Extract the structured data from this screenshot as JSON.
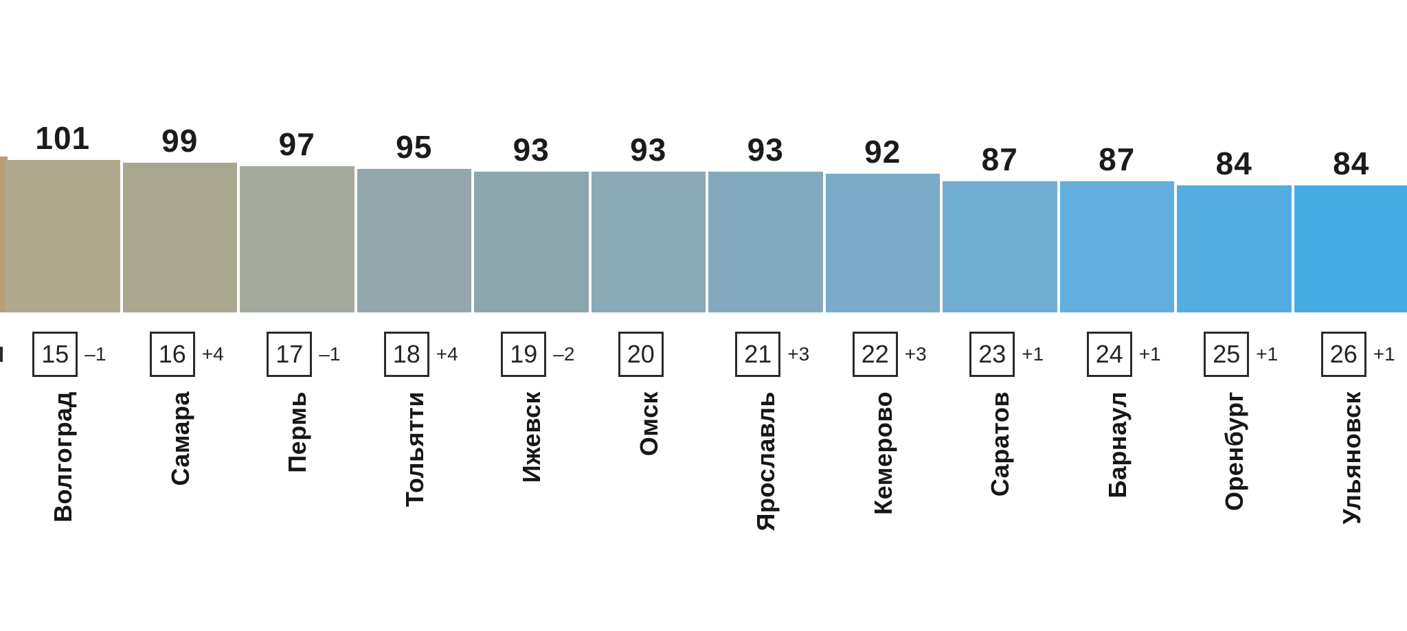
{
  "chart_data": {
    "type": "bar",
    "orientation": "vertical",
    "title": "",
    "categories": [
      "Волгоград",
      "Самара",
      "Пермь",
      "Тольятти",
      "Ижевск",
      "Омск",
      "Ярославль",
      "Кемерово",
      "Саратов",
      "Барнаул",
      "Оренбург",
      "Ульяновск"
    ],
    "values": [
      101,
      99,
      97,
      95,
      93,
      93,
      93,
      92,
      87,
      87,
      84,
      84
    ],
    "ranks": [
      15,
      16,
      17,
      18,
      19,
      20,
      21,
      22,
      23,
      24,
      25,
      26
    ],
    "rank_changes": [
      "–1",
      "+4",
      "–1",
      "+4",
      "–2",
      "",
      "+3",
      "+3",
      "+1",
      "+1",
      "+1",
      "+1"
    ],
    "bar_colors": [
      "#b0a88c",
      "#a9a78f",
      "#a3aa9d",
      "#93a7ac",
      "#8ca6ad",
      "#8aa8b6",
      "#84a9bc",
      "#7aabc8",
      "#6fadd3",
      "#62aede",
      "#55ace1",
      "#45ade4"
    ],
    "legend": "none",
    "gridlines": "off",
    "value_labels_shown": true,
    "clipped_left_bar": {
      "color": "#b89d77"
    }
  }
}
